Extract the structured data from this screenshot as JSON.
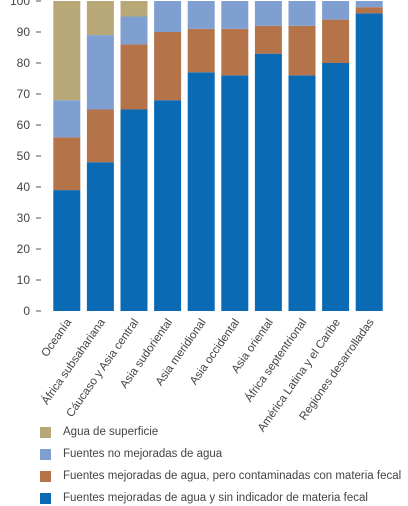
{
  "chart_data": {
    "type": "bar",
    "stacked": true,
    "title": "",
    "xlabel": "",
    "ylabel": "",
    "ylim": [
      0,
      100
    ],
    "yticks": [
      0,
      10,
      20,
      30,
      40,
      50,
      60,
      70,
      80,
      90,
      100
    ],
    "grid": false,
    "legend_position": "bottom",
    "categories": [
      "Oceanía",
      "África subsahariana",
      "Cáucaso y Asia central",
      "Asia sudoriental",
      "Asia meridional",
      "Asia occidental",
      "Asia oriental",
      "África septentrional",
      "América Latina y el Caribe",
      "Regiones desarrolladas"
    ],
    "series": [
      {
        "name": "Fuentes mejoradas de agua y sin indicador de materia fecal",
        "color": "#0b6ab4",
        "values": [
          39,
          48,
          65,
          68,
          77,
          76,
          83,
          76,
          80,
          96
        ]
      },
      {
        "name": "Fuentes mejoradas de agua, pero contaminadas con materia fecal",
        "color": "#b5734a",
        "values": [
          17,
          17,
          21,
          22,
          14,
          15,
          9,
          16,
          14,
          2
        ]
      },
      {
        "name": "Fuentes no mejoradas de agua",
        "color": "#7f9fd1",
        "values": [
          12,
          24,
          9,
          10,
          9,
          9,
          8,
          8,
          6,
          2
        ]
      },
      {
        "name": "Agua de superficie",
        "color": "#b8a878",
        "values": [
          32,
          11,
          5,
          0,
          0,
          0,
          0,
          0,
          0,
          0
        ]
      }
    ],
    "legend_order": [
      3,
      2,
      1,
      0
    ]
  }
}
